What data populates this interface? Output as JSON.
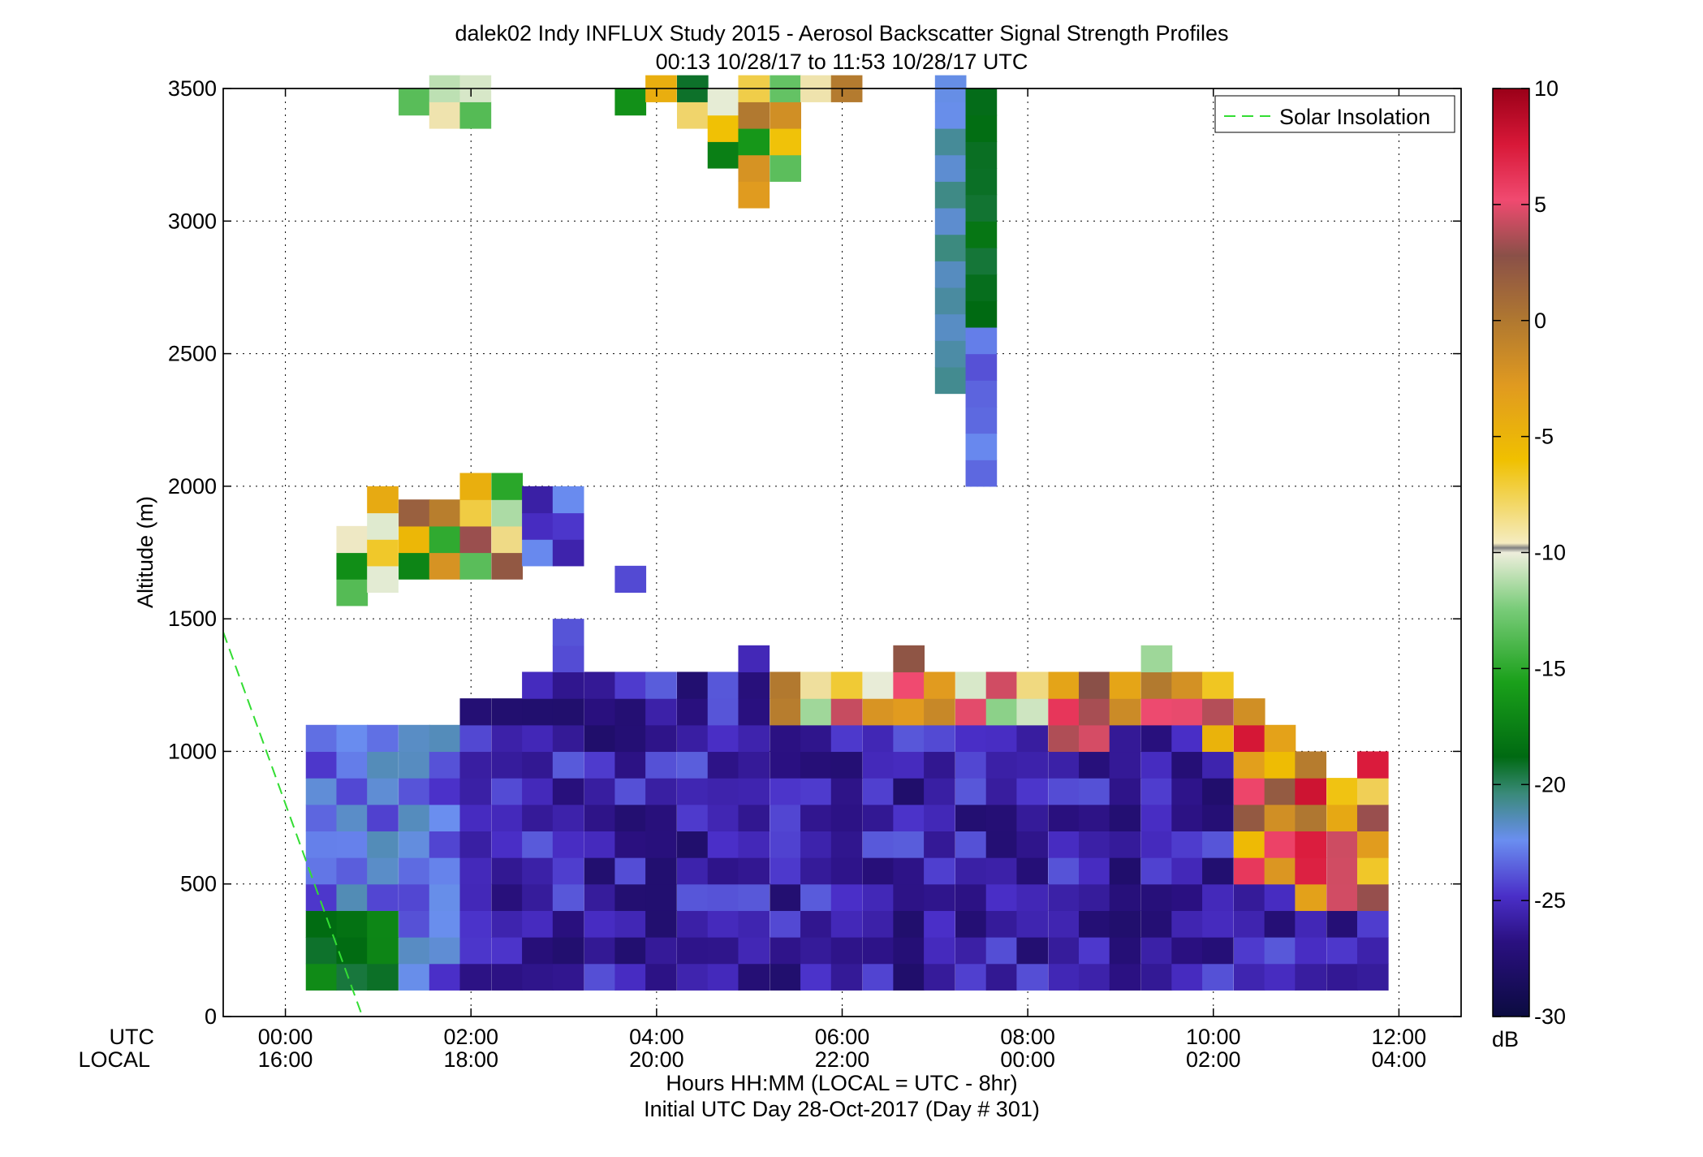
{
  "chart_data": {
    "type": "heatmap",
    "title": "dalek02 Indy INFLUX Study 2015 - Aerosol Backscatter Signal Strength Profiles",
    "subtitle": "00:13 10/28/17 to 11:53 10/28/17  UTC",
    "ylabel": "Altitude (m)",
    "xlabel": "Hours HH:MM  (LOCAL = UTC - 8hr)",
    "xlabel2": "Initial UTC Day 28-Oct-2017 (Day # 301)",
    "row_label_utc": "UTC",
    "row_label_local": "LOCAL",
    "x_range_hours": [
      -0.67,
      12.67
    ],
    "ylim": [
      0,
      3500
    ],
    "y_ticks": [
      "0",
      "500",
      "1000",
      "1500",
      "2000",
      "2500",
      "3000",
      "3500"
    ],
    "x_ticks_utc": [
      "00:00",
      "02:00",
      "04:00",
      "06:00",
      "08:00",
      "10:00",
      "12:00"
    ],
    "x_ticks_local": [
      "16:00",
      "18:00",
      "20:00",
      "22:00",
      "00:00",
      "02:00",
      "04:00"
    ],
    "grid": true,
    "legend": {
      "entries": [
        "Solar Insolation"
      ],
      "placement": "top-right"
    },
    "colorbar": {
      "label": "dB",
      "range": [
        -30,
        10
      ],
      "ticks": [
        "10",
        "5",
        "0",
        "-5",
        "-10",
        "-15",
        "-20",
        "-25",
        "-30"
      ]
    },
    "bin_width_hours": 0.333,
    "bin_height_m": 100,
    "column_start_hours": [
      0.22,
      0.55,
      0.88,
      1.22,
      1.55,
      1.88,
      2.22,
      2.55,
      2.88,
      3.22,
      3.55,
      3.88,
      4.22,
      4.55,
      4.88,
      5.22,
      5.55,
      5.88,
      6.22,
      6.55,
      6.88,
      7.22,
      7.55,
      7.88,
      8.22,
      8.55,
      8.88,
      9.22,
      9.55,
      9.88,
      10.22,
      10.55,
      10.88,
      11.22,
      11.55
    ],
    "boundary_layer_top_m": [
      1050,
      1050,
      1050,
      1100,
      1100,
      1150,
      1200,
      1300,
      1450,
      1250,
      1250,
      1250,
      1300,
      1300,
      1350,
      1300,
      1300,
      1300,
      1300,
      1350,
      1300,
      1300,
      1300,
      1300,
      1250,
      1250,
      1300,
      1350,
      1300,
      1250,
      1150,
      1100,
      1000,
      900,
      950
    ],
    "solar_insolation_line": {
      "hours": [
        -0.67,
        0.83
      ],
      "altitude_m": [
        1450,
        0
      ]
    },
    "notes_values_db": "Boundary layer mostly -22 to -27 dB; upper layers up to +5 dB near 05:30-11:30 UTC; aloft plume near 07:00-07:30 UTC from 2000 to 3500 m at -15 to -25 dB"
  }
}
